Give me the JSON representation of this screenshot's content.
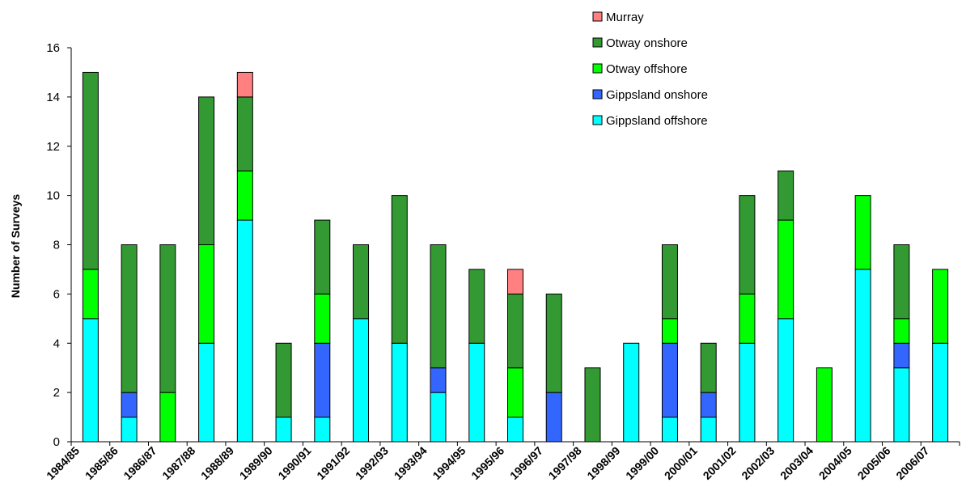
{
  "chart_data": {
    "type": "bar",
    "stacked": true,
    "title": "",
    "xlabel": "",
    "ylabel": "Number of Surveys",
    "ylim": [
      0,
      16
    ],
    "yticks": [
      0,
      2,
      4,
      6,
      8,
      10,
      12,
      14,
      16
    ],
    "grid": false,
    "legend_position": "top-right",
    "categories": [
      "1984/85",
      "1985/86",
      "1986/87",
      "1987/88",
      "1988/89",
      "1989/90",
      "1990/91",
      "1991/92",
      "1992/93",
      "1993/94",
      "1994/95",
      "1995/96",
      "1996/97",
      "1997/98",
      "1998/99",
      "1999/00",
      "2000/01",
      "2001/02",
      "2002/03",
      "2003/04",
      "2004/05",
      "2005/06",
      "2006/07"
    ],
    "series": [
      {
        "name": "Gippsland offshore",
        "color": "#00FFFF",
        "values": [
          5,
          1,
          0,
          4,
          9,
          1,
          1,
          5,
          4,
          2,
          4,
          1,
          0,
          0,
          4,
          1,
          1,
          4,
          5,
          0,
          7,
          3,
          4
        ]
      },
      {
        "name": "Gippsland onshore",
        "color": "#3366FF",
        "values": [
          0,
          1,
          0,
          0,
          0,
          0,
          3,
          0,
          0,
          1,
          0,
          0,
          2,
          0,
          0,
          3,
          1,
          0,
          0,
          0,
          0,
          1,
          0
        ]
      },
      {
        "name": "Otway offshore",
        "color": "#00FF00",
        "values": [
          2,
          0,
          2,
          4,
          2,
          0,
          2,
          0,
          0,
          0,
          0,
          2,
          0,
          0,
          0,
          1,
          0,
          2,
          4,
          3,
          3,
          1,
          3
        ]
      },
      {
        "name": "Otway onshore",
        "color": "#339933",
        "values": [
          8,
          6,
          6,
          6,
          3,
          3,
          3,
          3,
          6,
          5,
          3,
          3,
          4,
          3,
          0,
          3,
          2,
          4,
          2,
          0,
          0,
          3,
          0
        ]
      },
      {
        "name": "Murray",
        "color": "#FF8080",
        "values": [
          0,
          0,
          0,
          0,
          1,
          0,
          0,
          0,
          0,
          0,
          0,
          1,
          0,
          0,
          0,
          0,
          0,
          0,
          0,
          0,
          0,
          0,
          0
        ]
      }
    ],
    "legend_order": [
      "Murray",
      "Otway onshore",
      "Otway offshore",
      "Gippsland onshore",
      "Gippsland offshore"
    ]
  }
}
